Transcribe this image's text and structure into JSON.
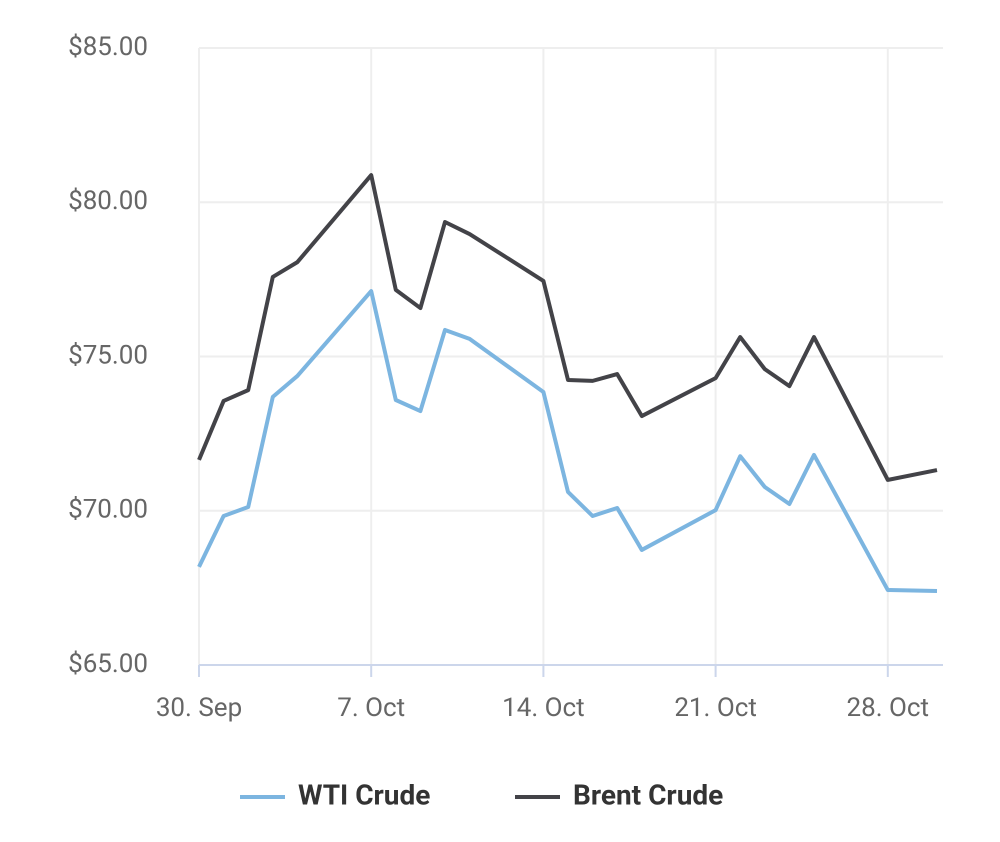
{
  "chart_data": {
    "type": "line",
    "x": [
      "30. Sep",
      "1. Oct",
      "2. Oct",
      "3. Oct",
      "4. Oct",
      "7. Oct",
      "8. Oct",
      "9. Oct",
      "10. Oct",
      "11. Oct",
      "14. Oct",
      "15. Oct",
      "16. Oct",
      "17. Oct",
      "18. Oct",
      "21. Oct",
      "22. Oct",
      "23. Oct",
      "24. Oct",
      "25. Oct",
      "28. Oct",
      "30. Oct"
    ],
    "series": [
      {
        "name": "WTI Crude",
        "color": "#7cb5e0",
        "values": [
          68.18,
          69.83,
          70.12,
          73.69,
          74.37,
          77.12,
          73.59,
          73.23,
          75.86,
          75.57,
          73.85,
          70.61,
          69.83,
          70.09,
          68.73,
          70.02,
          71.77,
          70.77,
          70.22,
          71.81,
          67.43,
          67.4
        ]
      },
      {
        "name": "Brent Crude",
        "color": "#434348",
        "values": [
          71.65,
          73.56,
          73.91,
          77.58,
          78.06,
          80.88,
          77.16,
          76.57,
          79.36,
          78.97,
          77.45,
          74.24,
          74.21,
          74.43,
          73.07,
          74.3,
          75.63,
          74.59,
          74.04,
          75.63,
          71.0,
          71.32
        ]
      }
    ],
    "xlim": [
      "30. Sep",
      "30. Oct"
    ],
    "xticks": [
      "30. Sep",
      "7. Oct",
      "14. Oct",
      "21. Oct",
      "28. Oct"
    ],
    "ylim": [
      65,
      85
    ],
    "yticks": [
      {
        "value": 65,
        "label": "$65.00"
      },
      {
        "value": 70,
        "label": "$70.00"
      },
      {
        "value": 75,
        "label": "$75.00"
      },
      {
        "value": 80,
        "label": "$80.00"
      },
      {
        "value": 85,
        "label": "$85.00"
      }
    ],
    "grid": true,
    "legend": "bottom"
  }
}
